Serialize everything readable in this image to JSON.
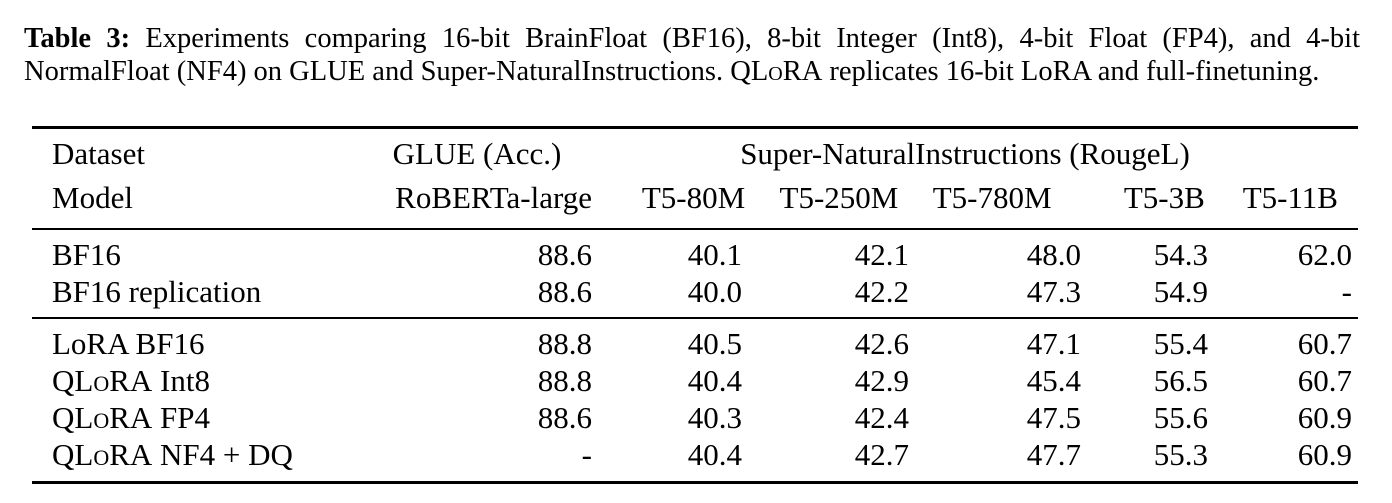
{
  "caption": {
    "label": "Table 3:",
    "text_before_sc": " Experiments comparing 16-bit BrainFloat (BF16), 8-bit Integer (Int8), 4-bit Float (FP4), and 4-bit NormalFloat (NF4) on GLUE and Super-NaturalInstructions. Q",
    "sc": "LoRA",
    "text_after_sc": " replicates 16-bit LoRA and full-finetuning."
  },
  "table": {
    "header_row1": {
      "col0": "Dataset",
      "col1": "GLUE (Acc.)",
      "group": "Super-NaturalInstructions (RougeL)"
    },
    "header_row2": [
      "Model",
      "RoBERTa-large",
      "T5-80M",
      "T5-250M",
      "T5-780M",
      "T5-3B",
      "T5-11B"
    ],
    "group1": [
      {
        "model": "BF16",
        "values": [
          "88.6",
          "40.1",
          "42.1",
          "48.0",
          "54.3",
          "62.0"
        ]
      },
      {
        "model": "BF16 replication",
        "values": [
          "88.6",
          "40.0",
          "42.2",
          "47.3",
          "54.9",
          "-"
        ]
      }
    ],
    "group2": [
      {
        "model_prefix": "",
        "model_sc": "",
        "model_suffix": "LoRA BF16",
        "values": [
          "88.8",
          "40.5",
          "42.6",
          "47.1",
          "55.4",
          "60.7"
        ]
      },
      {
        "model_prefix": "Q",
        "model_sc": "LoRA",
        "model_suffix": " Int8",
        "values": [
          "88.8",
          "40.4",
          "42.9",
          "45.4",
          "56.5",
          "60.7"
        ]
      },
      {
        "model_prefix": "Q",
        "model_sc": "LoRA",
        "model_suffix": " FP4",
        "values": [
          "88.6",
          "40.3",
          "42.4",
          "47.5",
          "55.6",
          "60.9"
        ]
      },
      {
        "model_prefix": "Q",
        "model_sc": "LoRA",
        "model_suffix": " NF4 + DQ",
        "values": [
          "-",
          "40.4",
          "42.7",
          "47.7",
          "55.3",
          "60.9"
        ]
      }
    ]
  }
}
